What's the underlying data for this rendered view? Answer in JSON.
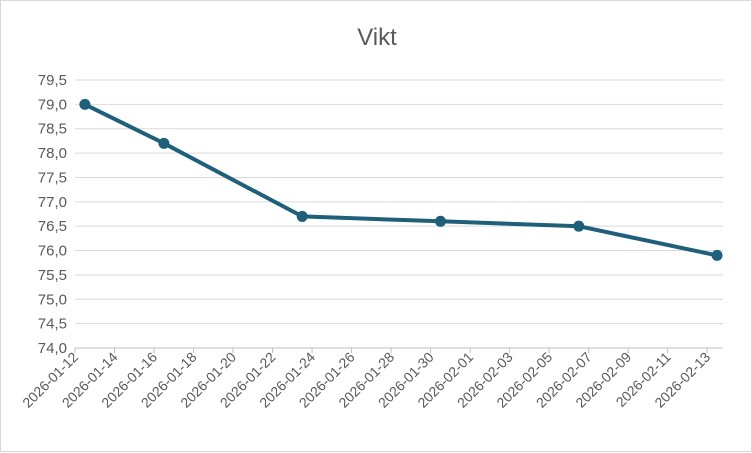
{
  "chart_data": {
    "type": "line",
    "title": "Vikt",
    "xlabel": "",
    "ylabel": "",
    "x_tick_labels": [
      "2026-01-12",
      "2026-01-14",
      "2026-01-16",
      "2026-01-18",
      "2026-01-20",
      "2026-01-22",
      "2026-01-24",
      "2026-01-26",
      "2026-01-28",
      "2026-01-30",
      "2026-02-01",
      "2026-02-03",
      "2026-02-05",
      "2026-02-07",
      "2026-02-09",
      "2026-02-11",
      "2026-02-13"
    ],
    "y_tick_labels": [
      "74,0",
      "74,5",
      "75,0",
      "75,5",
      "76,0",
      "76,5",
      "77,0",
      "77,5",
      "78,0",
      "78,5",
      "79,0",
      "79,5"
    ],
    "ylim": [
      74.0,
      79.5
    ],
    "grid": true,
    "legend": "none",
    "series": [
      {
        "color": "#1f5f7a",
        "points": [
          {
            "x": "2026-01-12",
            "y": 79.0
          },
          {
            "x": "2026-01-16",
            "y": 78.2
          },
          {
            "x": "2026-01-23",
            "y": 76.7
          },
          {
            "x": "2026-01-30",
            "y": 76.6
          },
          {
            "x": "2026-02-06",
            "y": 76.5
          },
          {
            "x": "2026-02-13",
            "y": 75.9
          }
        ]
      }
    ]
  }
}
